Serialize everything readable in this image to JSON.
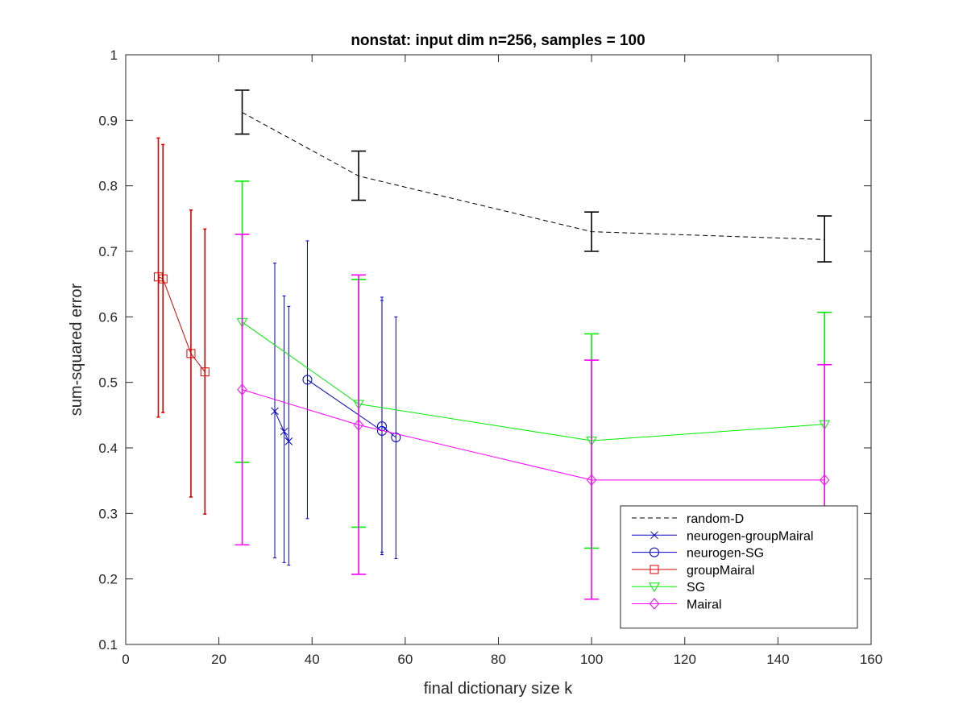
{
  "chart_data": {
    "type": "line",
    "title": "nonstat: input dim n=256, samples = 100",
    "xlabel": "final dictionary size k",
    "ylabel": "sum-squared error",
    "xlim": [
      0,
      160
    ],
    "ylim": [
      0.1,
      1.0
    ],
    "xticks": [
      "0",
      "20",
      "40",
      "60",
      "80",
      "100",
      "120",
      "140",
      "160"
    ],
    "yticks": [
      "0.1",
      "0.2",
      "0.3",
      "0.4",
      "0.5",
      "0.6",
      "0.7",
      "0.8",
      "0.9",
      "1"
    ],
    "legend_position": "bottom-right",
    "grid": false,
    "series": [
      {
        "name": "random-D",
        "color": "#000000",
        "dash": "dashed",
        "marker": "none",
        "points": [
          {
            "x": 25,
            "y": 0.912,
            "lo": 0.879,
            "hi": 0.946
          },
          {
            "x": 50,
            "y": 0.815,
            "lo": 0.778,
            "hi": 0.853
          },
          {
            "x": 100,
            "y": 0.73,
            "lo": 0.7,
            "hi": 0.76
          },
          {
            "x": 150,
            "y": 0.718,
            "lo": 0.684,
            "hi": 0.754
          }
        ]
      },
      {
        "name": "neurogen-groupMairal",
        "color": "#0000cc",
        "dash": "solid",
        "marker": "x",
        "points": [
          {
            "x": 32,
            "y": 0.456,
            "lo": 0.232,
            "hi": 0.682
          },
          {
            "x": 34,
            "y": 0.425,
            "lo": 0.225,
            "hi": 0.632
          },
          {
            "x": 35,
            "y": 0.41,
            "lo": 0.221,
            "hi": 0.616
          }
        ]
      },
      {
        "name": "neurogen-SG",
        "color": "#0000cc",
        "dash": "solid",
        "marker": "circle",
        "points": [
          {
            "x": 39,
            "y": 0.504,
            "lo": 0.292,
            "hi": 0.716
          },
          {
            "x": 55,
            "y": 0.426,
            "lo": 0.237,
            "hi": 0.63
          },
          {
            "x": 55,
            "y": 0.433,
            "lo": 0.241,
            "hi": 0.625
          },
          {
            "x": 58,
            "y": 0.416,
            "lo": 0.231,
            "hi": 0.6
          }
        ]
      },
      {
        "name": "groupMairal",
        "color": "#dd0000",
        "dash": "solid",
        "marker": "square",
        "points": [
          {
            "x": 7,
            "y": 0.661,
            "lo": 0.447,
            "hi": 0.873
          },
          {
            "x": 8,
            "y": 0.658,
            "lo": 0.454,
            "hi": 0.863
          },
          {
            "x": 14,
            "y": 0.544,
            "lo": 0.325,
            "hi": 0.763
          },
          {
            "x": 17,
            "y": 0.516,
            "lo": 0.299,
            "hi": 0.734
          }
        ]
      },
      {
        "name": "SG",
        "color": "#00ee00",
        "dash": "solid",
        "marker": "triangle-down",
        "points": [
          {
            "x": 25,
            "y": 0.592,
            "lo": 0.378,
            "hi": 0.807
          },
          {
            "x": 50,
            "y": 0.467,
            "lo": 0.279,
            "hi": 0.657
          },
          {
            "x": 100,
            "y": 0.411,
            "lo": 0.247,
            "hi": 0.574
          },
          {
            "x": 150,
            "y": 0.436,
            "lo": 0.265,
            "hi": 0.607
          }
        ]
      },
      {
        "name": "Mairal",
        "color": "#ff00ff",
        "dash": "solid",
        "marker": "diamond",
        "points": [
          {
            "x": 25,
            "y": 0.489,
            "lo": 0.252,
            "hi": 0.726
          },
          {
            "x": 50,
            "y": 0.435,
            "lo": 0.207,
            "hi": 0.664
          },
          {
            "x": 100,
            "y": 0.351,
            "lo": 0.169,
            "hi": 0.534
          },
          {
            "x": 150,
            "y": 0.351,
            "lo": 0.176,
            "hi": 0.527
          }
        ]
      }
    ]
  }
}
